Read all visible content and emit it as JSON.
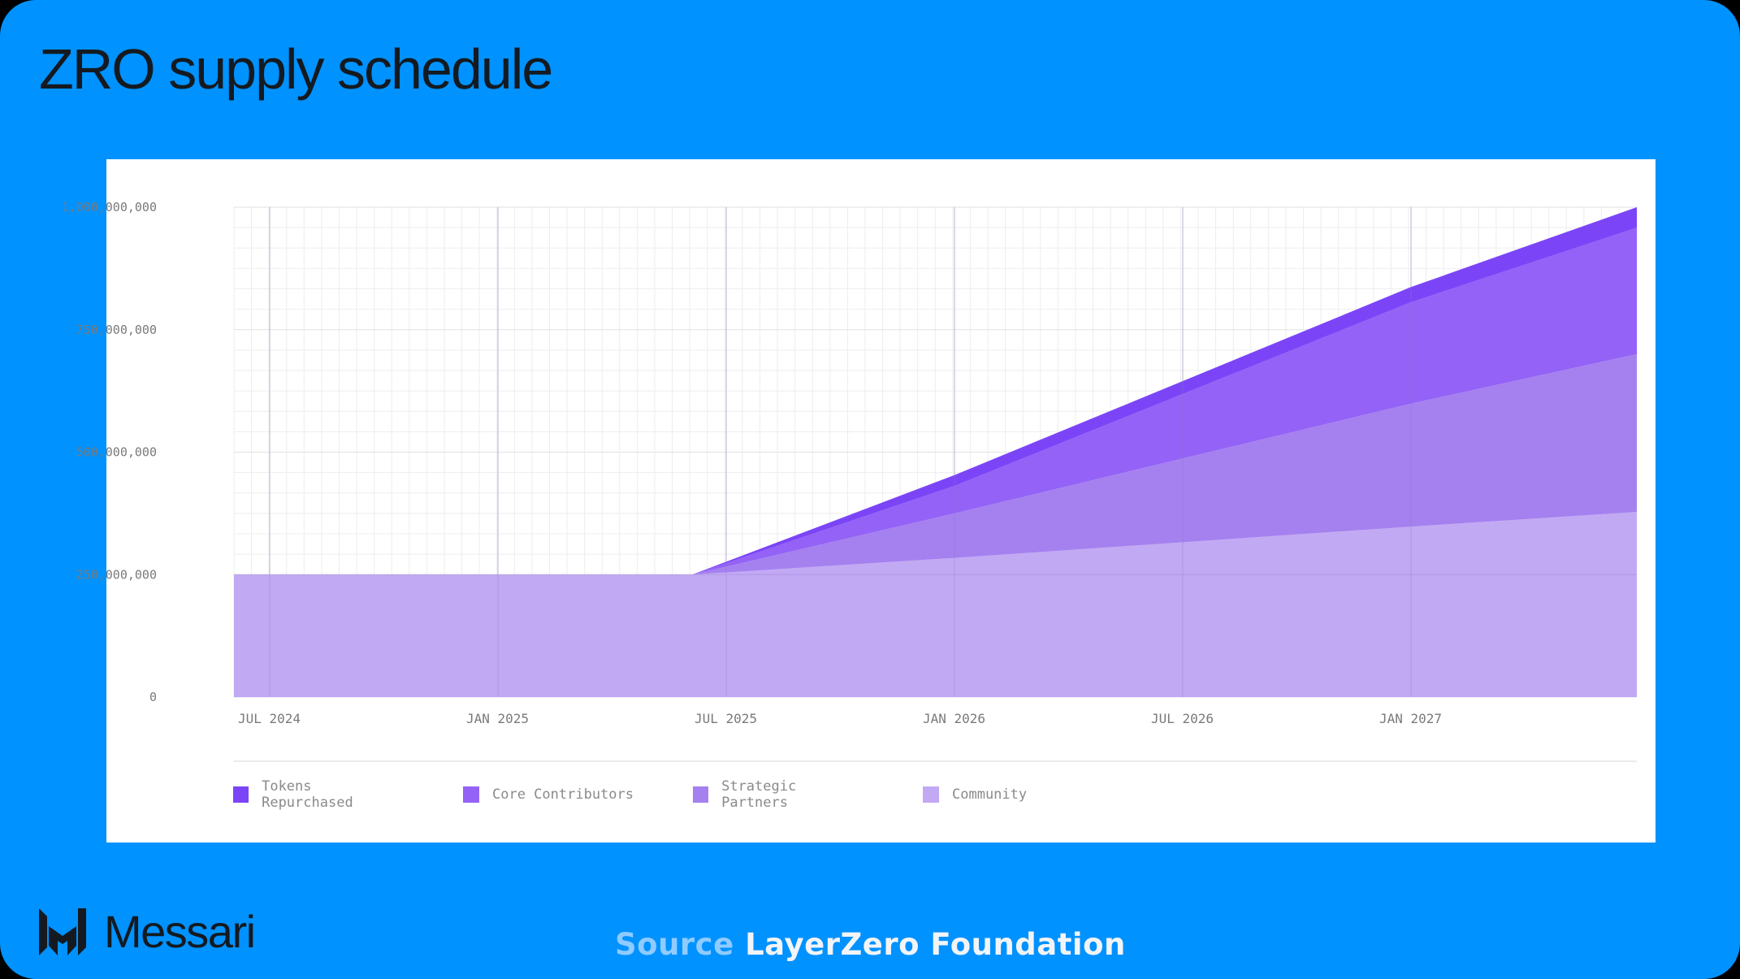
{
  "header": {
    "title": "ZRO supply schedule"
  },
  "footer": {
    "brand": "Messari",
    "source_label": "Source",
    "source_value": "LayerZero Foundation"
  },
  "colors": {
    "background": "#0092ff",
    "card": "#ffffff",
    "tokens_repurchased": "#7b45f7",
    "core_contributors": "#9462f6",
    "strategic_partners": "#a581ef",
    "community": "#c2a9f4",
    "grid": "#ececec",
    "tick_text": "#7a7a7a"
  },
  "legend": [
    {
      "label": "Tokens Repurchased",
      "color": "#7b45f7"
    },
    {
      "label": "Core Contributors",
      "color": "#9462f6"
    },
    {
      "label": "Strategic Partners",
      "color": "#a581ef"
    },
    {
      "label": "Community",
      "color": "#c2a9f4"
    }
  ],
  "chart_data": {
    "type": "area",
    "stacked": true,
    "title": "ZRO supply schedule",
    "xlabel": "",
    "ylabel": "",
    "ylim": [
      0,
      1000000000
    ],
    "yticks": [
      "0",
      "250,000,000",
      "500,000,000",
      "750,000,000",
      "1,000,000,000"
    ],
    "xticks": [
      "JUL 2024",
      "JAN 2025",
      "JUL 2025",
      "JAN 2026",
      "JUL 2026",
      "JAN 2027"
    ],
    "grid": true,
    "legend_position": "bottom",
    "x": [
      "2024-06",
      "2025-06",
      "2026-01",
      "2027-01",
      "2027-06"
    ],
    "series": [
      {
        "name": "Community",
        "values": [
          250000000,
          250000000,
          284000000,
          348000000,
          378000000
        ]
      },
      {
        "name": "Strategic Partners",
        "values": [
          0,
          0,
          91000000,
          251000000,
          322000000
        ]
      },
      {
        "name": "Core Contributors",
        "values": [
          0,
          0,
          56000000,
          207000000,
          258000000
        ]
      },
      {
        "name": "Tokens Repurchased",
        "values": [
          0,
          0,
          22000000,
          31000000,
          42000000
        ]
      }
    ],
    "totals": [
      250000000,
      250000000,
      453000000,
      837000000,
      1000000000
    ]
  }
}
